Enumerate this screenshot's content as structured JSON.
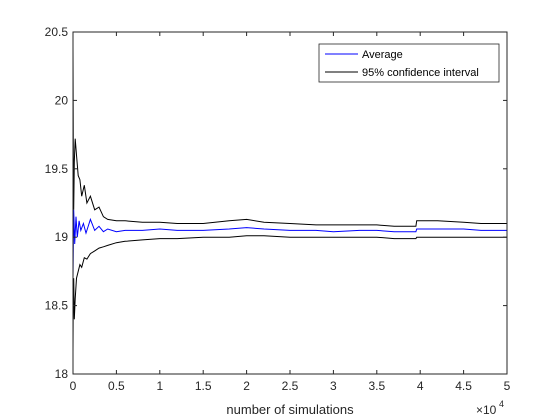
{
  "chart_data": {
    "type": "line",
    "title": "",
    "xlabel": "number of simulations",
    "ylabel": "",
    "x_exponent_label": "×10",
    "x_exponent_power": "4",
    "xlim": [
      0,
      50000
    ],
    "ylim": [
      18,
      20.5
    ],
    "xticks": [
      0,
      5000,
      10000,
      15000,
      20000,
      25000,
      30000,
      35000,
      40000,
      45000,
      50000
    ],
    "xtick_labels": [
      "0",
      "0.5",
      "1",
      "1.5",
      "2",
      "2.5",
      "3",
      "3.5",
      "4",
      "4.5",
      "5"
    ],
    "yticks": [
      18,
      18.5,
      19,
      19.5,
      20,
      20.5
    ],
    "ytick_labels": [
      "18",
      "18.5",
      "19",
      "19.5",
      "20",
      "20.5"
    ],
    "grid": false,
    "legend_position": "top-right",
    "colors": {
      "average": "#0000ff",
      "ci": "#000000"
    },
    "series": [
      {
        "name": "Average",
        "color": "#0000ff",
        "x": [
          1,
          80,
          200,
          350,
          500,
          700,
          900,
          1200,
          1500,
          2000,
          2500,
          3000,
          3500,
          4000,
          5000,
          6000,
          8000,
          10000,
          12000,
          15000,
          18000,
          20000,
          22000,
          25000,
          28000,
          30000,
          33000,
          35000,
          37000,
          39500,
          39600,
          42000,
          45000,
          47000,
          50000
        ],
        "y": [
          18.7,
          19.2,
          18.95,
          19.15,
          19.0,
          19.12,
          19.05,
          19.1,
          19.03,
          19.13,
          19.05,
          19.08,
          19.04,
          19.06,
          19.04,
          19.05,
          19.05,
          19.06,
          19.05,
          19.05,
          19.06,
          19.07,
          19.06,
          19.05,
          19.05,
          19.04,
          19.05,
          19.05,
          19.04,
          19.04,
          19.06,
          19.06,
          19.06,
          19.05,
          19.05
        ]
      },
      {
        "name": "95% confidence interval",
        "color": "#000000",
        "x": [
          1,
          30,
          80,
          150,
          250,
          400,
          600,
          800,
          1000,
          1300,
          1600,
          2000,
          2500,
          3000,
          3500,
          4000,
          5000,
          6000,
          8000,
          10000,
          12000,
          15000,
          18000,
          20000,
          22000,
          25000,
          28000,
          30000,
          33000,
          35000,
          37000,
          39500,
          39600,
          42000,
          45000,
          47000,
          50000
        ],
        "y": [
          20.4,
          19.7,
          19.2,
          19.55,
          19.72,
          19.6,
          19.45,
          19.42,
          19.3,
          19.38,
          19.25,
          19.3,
          19.2,
          19.22,
          19.15,
          19.13,
          19.12,
          19.12,
          19.11,
          19.11,
          19.1,
          19.1,
          19.12,
          19.13,
          19.11,
          19.1,
          19.09,
          19.09,
          19.09,
          19.09,
          19.08,
          19.08,
          19.12,
          19.12,
          19.11,
          19.1,
          19.1
        ]
      },
      {
        "name": "",
        "color": "#000000",
        "x": [
          1,
          30,
          80,
          150,
          250,
          400,
          600,
          800,
          1000,
          1300,
          1600,
          2000,
          2500,
          3000,
          3500,
          4000,
          5000,
          6000,
          8000,
          10000,
          12000,
          15000,
          18000,
          20000,
          22000,
          25000,
          28000,
          30000,
          33000,
          35000,
          37000,
          39500,
          39600,
          42000,
          45000,
          47000,
          50000
        ],
        "y": [
          18.15,
          18.6,
          18.7,
          18.4,
          18.55,
          18.7,
          18.75,
          18.8,
          18.78,
          18.85,
          18.84,
          18.88,
          18.9,
          18.92,
          18.93,
          18.94,
          18.96,
          18.97,
          18.98,
          18.99,
          18.99,
          19.0,
          19.0,
          19.01,
          19.01,
          19.0,
          19.0,
          19.0,
          19.0,
          19.0,
          18.99,
          18.99,
          19.0,
          19.0,
          19.0,
          19.0,
          19.0
        ]
      }
    ]
  }
}
